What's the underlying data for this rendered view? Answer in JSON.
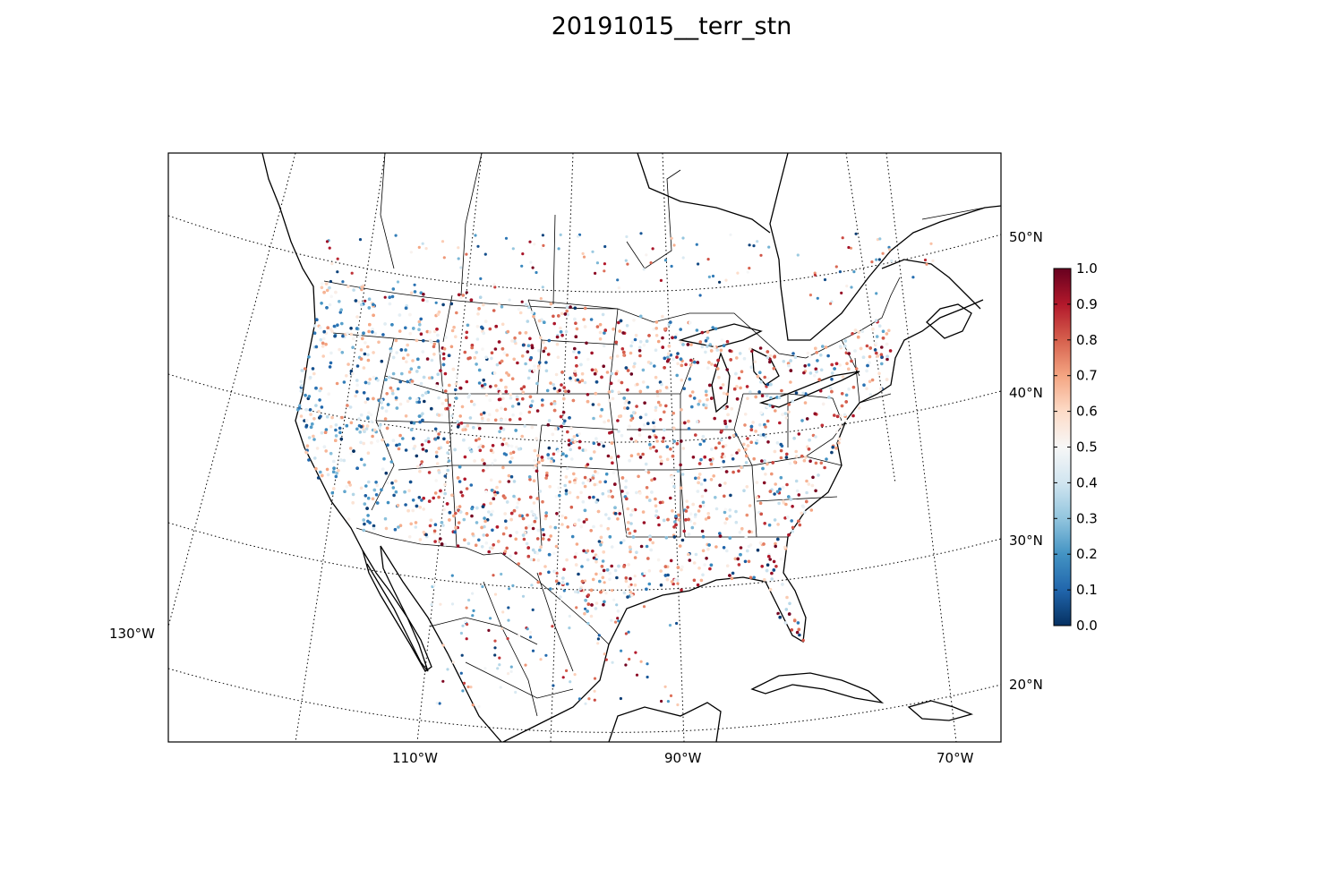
{
  "title": "20191015__terr_stn",
  "map": {
    "projection": "lambert-conformal",
    "parallel_labels": [
      "20°N",
      "30°N",
      "40°N",
      "50°N"
    ],
    "meridian_labels": [
      "130°W",
      "110°W",
      "90°W",
      "70°W"
    ],
    "grid_style": "dotted",
    "marker": "small filled circles (station points)"
  },
  "colorbar": {
    "colormap": "RdBu_r",
    "min": 0.0,
    "max": 1.0,
    "ticks": [
      "0.0",
      "0.1",
      "0.2",
      "0.3",
      "0.4",
      "0.5",
      "0.6",
      "0.7",
      "0.8",
      "0.9",
      "1.0"
    ],
    "colors": {
      "low": "#053061",
      "mid": "#f7f7f7",
      "high": "#67001f"
    }
  }
}
